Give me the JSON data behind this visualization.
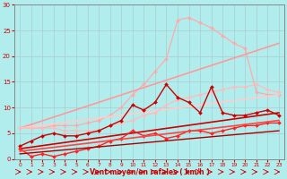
{
  "background_color": "#b2eded",
  "grid_color": "#aacccc",
  "xlabel": "Vent moyen/en rafales ( km/h )",
  "xlim": [
    -0.5,
    23.5
  ],
  "ylim": [
    0,
    30
  ],
  "xticks": [
    0,
    1,
    2,
    3,
    4,
    5,
    6,
    7,
    8,
    9,
    10,
    11,
    12,
    13,
    14,
    15,
    16,
    17,
    18,
    19,
    20,
    21,
    22,
    23
  ],
  "yticks": [
    0,
    5,
    10,
    15,
    20,
    25,
    30
  ],
  "lines": [
    {
      "x": [
        0,
        1,
        2,
        3,
        4,
        5,
        6,
        7,
        8,
        9,
        10,
        11,
        12,
        13,
        14,
        15,
        16,
        17,
        18,
        19,
        20,
        21,
        22,
        23
      ],
      "y": [
        6.0,
        6.0,
        6.0,
        6.5,
        6.5,
        6.5,
        7.0,
        7.5,
        8.5,
        10.0,
        12.5,
        14.5,
        17.0,
        19.5,
        27.0,
        27.5,
        26.5,
        25.5,
        24.0,
        22.5,
        21.5,
        13.0,
        12.5,
        12.5
      ],
      "color": "#ffaaaa",
      "lw": 0.9,
      "marker": "D",
      "ms": 2.0
    },
    {
      "x": [
        0,
        23
      ],
      "y": [
        6.0,
        22.5
      ],
      "color": "#ff9999",
      "lw": 1.2,
      "marker": null,
      "ms": 0
    },
    {
      "x": [
        0,
        23
      ],
      "y": [
        6.0,
        12.5
      ],
      "color": "#ffcccc",
      "lw": 1.2,
      "marker": null,
      "ms": 0
    },
    {
      "x": [
        0,
        1,
        2,
        3,
        4,
        5,
        6,
        7,
        8,
        9,
        10,
        11,
        12,
        13,
        14,
        15,
        16,
        17,
        18,
        19,
        20,
        21,
        22,
        23
      ],
      "y": [
        6.0,
        6.0,
        6.0,
        6.0,
        5.5,
        5.5,
        5.5,
        5.5,
        6.5,
        7.0,
        7.5,
        8.5,
        9.0,
        10.5,
        11.5,
        12.0,
        12.5,
        13.0,
        13.5,
        14.0,
        14.0,
        14.5,
        13.5,
        13.0
      ],
      "color": "#ffbbbb",
      "lw": 0.9,
      "marker": "D",
      "ms": 2.0
    },
    {
      "x": [
        0,
        1,
        2,
        3,
        4,
        5,
        6,
        7,
        8,
        9,
        10,
        11,
        12,
        13,
        14,
        15,
        16,
        17,
        18,
        19,
        20,
        21,
        22,
        23
      ],
      "y": [
        2.5,
        3.5,
        4.5,
        5.0,
        4.5,
        4.5,
        5.0,
        5.5,
        6.5,
        7.5,
        10.5,
        9.5,
        11.0,
        14.5,
        12.0,
        11.0,
        9.0,
        14.0,
        9.0,
        8.5,
        8.5,
        9.0,
        9.5,
        8.5
      ],
      "color": "#cc0000",
      "lw": 1.0,
      "marker": "D",
      "ms": 2.0
    },
    {
      "x": [
        0,
        23
      ],
      "y": [
        2.0,
        9.0
      ],
      "color": "#cc0000",
      "lw": 1.2,
      "marker": null,
      "ms": 0
    },
    {
      "x": [
        0,
        1,
        2,
        3,
        4,
        5,
        6,
        7,
        8,
        9,
        10,
        11,
        12,
        13,
        14,
        15,
        16,
        17,
        18,
        19,
        20,
        21,
        22,
        23
      ],
      "y": [
        2.0,
        0.5,
        1.0,
        0.5,
        1.0,
        1.5,
        2.0,
        2.5,
        3.5,
        4.0,
        5.5,
        4.5,
        5.0,
        4.0,
        4.5,
        5.5,
        5.5,
        5.0,
        5.5,
        6.0,
        6.5,
        6.5,
        7.0,
        7.0
      ],
      "color": "#ff2222",
      "lw": 1.0,
      "marker": "D",
      "ms": 2.0
    },
    {
      "x": [
        0,
        23
      ],
      "y": [
        1.5,
        7.5
      ],
      "color": "#ff4444",
      "lw": 1.2,
      "marker": null,
      "ms": 0
    },
    {
      "x": [
        0,
        23
      ],
      "y": [
        1.0,
        5.5
      ],
      "color": "#aa0000",
      "lw": 1.0,
      "marker": null,
      "ms": 0
    }
  ],
  "wind_arrows": {
    "x": [
      0,
      1,
      2,
      3,
      4,
      5,
      6,
      7,
      8,
      9,
      10,
      11,
      12,
      13,
      14,
      15,
      16,
      17,
      18,
      19,
      20,
      21,
      22,
      23
    ],
    "color": "#cc0000"
  }
}
